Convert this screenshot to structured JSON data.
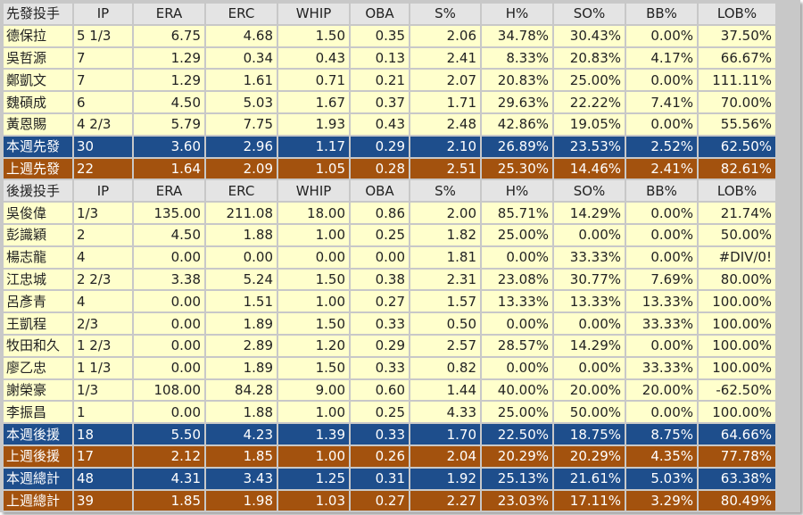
{
  "columns": [
    "IP",
    "ERA",
    "ERC",
    "WHIP",
    "OBA",
    "S%",
    "H%",
    "SO%",
    "BB%",
    "LOB%"
  ],
  "sections": [
    {
      "header": "先發投手",
      "rows": [
        {
          "type": "player",
          "cells": [
            "德保拉",
            "5 1/3",
            "6.75",
            "4.68",
            "1.50",
            "0.35",
            "2.06",
            "34.78%",
            "30.43%",
            "0.00%",
            "37.50%"
          ]
        },
        {
          "type": "player",
          "cells": [
            "吳哲源",
            "7",
            "1.29",
            "0.34",
            "0.43",
            "0.13",
            "2.41",
            "8.33%",
            "20.83%",
            "4.17%",
            "66.67%"
          ]
        },
        {
          "type": "player",
          "cells": [
            "鄭凱文",
            "7",
            "1.29",
            "1.61",
            "0.71",
            "0.21",
            "2.07",
            "20.83%",
            "25.00%",
            "0.00%",
            "111.11%"
          ]
        },
        {
          "type": "player",
          "cells": [
            "魏碩成",
            "6",
            "4.50",
            "5.03",
            "1.67",
            "0.37",
            "1.71",
            "29.63%",
            "22.22%",
            "7.41%",
            "70.00%"
          ]
        },
        {
          "type": "player",
          "cells": [
            "黃恩賜",
            "4 2/3",
            "5.79",
            "7.75",
            "1.93",
            "0.43",
            "2.48",
            "42.86%",
            "19.05%",
            "0.00%",
            "55.56%"
          ]
        },
        {
          "type": "this-week",
          "cells": [
            "本週先發",
            "30",
            "3.60",
            "2.96",
            "1.17",
            "0.29",
            "2.10",
            "26.89%",
            "23.53%",
            "2.52%",
            "62.50%"
          ]
        },
        {
          "type": "last-week",
          "cells": [
            "上週先發",
            "22",
            "1.64",
            "2.09",
            "1.05",
            "0.28",
            "2.51",
            "25.30%",
            "14.46%",
            "2.41%",
            "82.61%"
          ]
        }
      ]
    },
    {
      "header": "後援投手",
      "rows": [
        {
          "type": "player",
          "cells": [
            "吳俊偉",
            "1/3",
            "135.00",
            "211.08",
            "18.00",
            "0.86",
            "2.00",
            "85.71%",
            "14.29%",
            "0.00%",
            "21.74%"
          ]
        },
        {
          "type": "player",
          "cells": [
            "彭識穎",
            "2",
            "4.50",
            "1.88",
            "1.00",
            "0.25",
            "1.82",
            "25.00%",
            "0.00%",
            "0.00%",
            "50.00%"
          ]
        },
        {
          "type": "player",
          "cells": [
            "楊志龍",
            "4",
            "0.00",
            "0.00",
            "0.00",
            "0.00",
            "1.81",
            "0.00%",
            "33.33%",
            "0.00%",
            "#DIV/0!"
          ]
        },
        {
          "type": "player",
          "cells": [
            "江忠城",
            "2 2/3",
            "3.38",
            "5.24",
            "1.50",
            "0.38",
            "2.31",
            "23.08%",
            "30.77%",
            "7.69%",
            "80.00%"
          ]
        },
        {
          "type": "player",
          "cells": [
            "呂彥青",
            "4",
            "0.00",
            "1.51",
            "1.00",
            "0.27",
            "1.57",
            "13.33%",
            "13.33%",
            "13.33%",
            "100.00%"
          ]
        },
        {
          "type": "player",
          "cells": [
            "王凱程",
            "2/3",
            "0.00",
            "1.89",
            "1.50",
            "0.33",
            "0.50",
            "0.00%",
            "0.00%",
            "33.33%",
            "100.00%"
          ]
        },
        {
          "type": "player",
          "cells": [
            "牧田和久",
            "1 2/3",
            "0.00",
            "2.89",
            "1.20",
            "0.29",
            "2.57",
            "28.57%",
            "14.29%",
            "0.00%",
            "100.00%"
          ]
        },
        {
          "type": "player",
          "cells": [
            "廖乙忠",
            "1 1/3",
            "0.00",
            "1.89",
            "1.50",
            "0.33",
            "0.82",
            "0.00%",
            "0.00%",
            "33.33%",
            "100.00%"
          ]
        },
        {
          "type": "player",
          "cells": [
            "謝榮豪",
            "1/3",
            "108.00",
            "84.28",
            "9.00",
            "0.60",
            "1.44",
            "40.00%",
            "20.00%",
            "20.00%",
            "-62.50%"
          ]
        },
        {
          "type": "player",
          "cells": [
            "李振昌",
            "1",
            "0.00",
            "1.88",
            "1.00",
            "0.25",
            "4.33",
            "25.00%",
            "50.00%",
            "0.00%",
            "100.00%"
          ]
        },
        {
          "type": "this-week",
          "cells": [
            "本週後援",
            "18",
            "5.50",
            "4.23",
            "1.39",
            "0.33",
            "1.70",
            "22.50%",
            "18.75%",
            "8.75%",
            "64.66%"
          ]
        },
        {
          "type": "last-week",
          "cells": [
            "上週後援",
            "17",
            "2.12",
            "1.85",
            "1.00",
            "0.26",
            "2.04",
            "20.29%",
            "20.29%",
            "4.35%",
            "77.78%"
          ]
        },
        {
          "type": "this-week",
          "cells": [
            "本週總計",
            "48",
            "4.31",
            "3.43",
            "1.25",
            "0.31",
            "1.92",
            "25.13%",
            "21.61%",
            "5.03%",
            "63.38%"
          ]
        },
        {
          "type": "last-week",
          "cells": [
            "上週總計",
            "39",
            "1.85",
            "1.98",
            "1.03",
            "0.27",
            "2.27",
            "23.03%",
            "17.11%",
            "3.29%",
            "80.49%"
          ]
        }
      ]
    }
  ],
  "colors": {
    "player_row_bg": "#ffffcc",
    "header_row_bg": "#e4e4e4",
    "this_week_bg": "#1e4e8c",
    "last_week_bg": "#a3520e",
    "grid": "#c8c8c8"
  }
}
